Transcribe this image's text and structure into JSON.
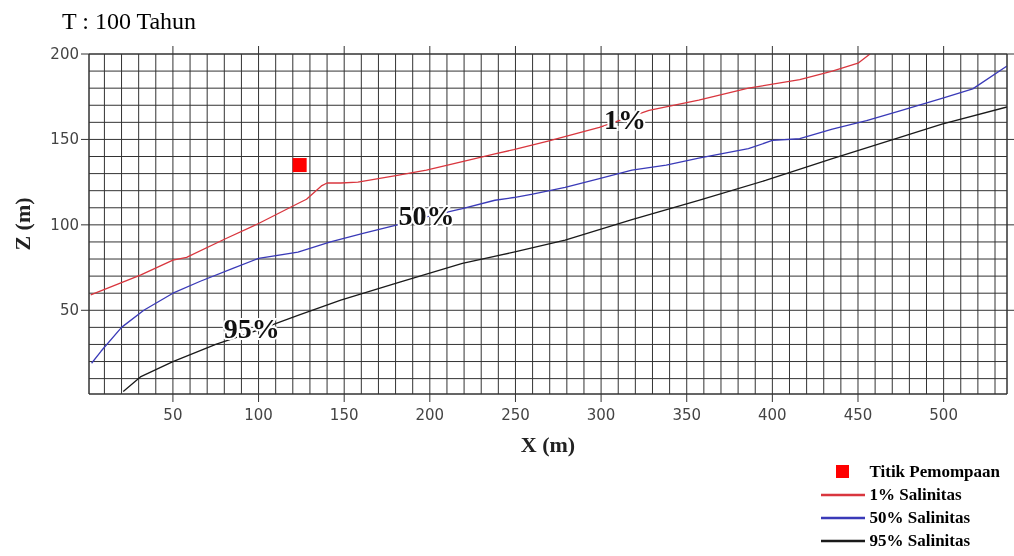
{
  "chart_data": {
    "type": "line",
    "title": "T : 100 Tahun",
    "xlabel": "X (m)",
    "ylabel": "Z (m)",
    "xlim": [
      1,
      537
    ],
    "ylim": [
      1,
      200
    ],
    "xticks": [
      {
        "value": 10,
        "label": null
      },
      {
        "value": 20,
        "label": null
      },
      {
        "value": 30,
        "label": null
      },
      {
        "value": 40,
        "label": null
      },
      50,
      {
        "value": 60,
        "label": null
      },
      {
        "value": 70,
        "label": null
      },
      {
        "value": 80,
        "label": null
      },
      {
        "value": 90,
        "label": null
      },
      100,
      {
        "value": 110,
        "label": null
      },
      {
        "value": 120,
        "label": null
      },
      {
        "value": 130,
        "label": null
      },
      {
        "value": 140,
        "label": null
      },
      150,
      {
        "value": 160,
        "label": null
      },
      {
        "value": 170,
        "label": null
      },
      {
        "value": 180,
        "label": null
      },
      {
        "value": 190,
        "label": null
      },
      200,
      {
        "value": 210,
        "label": null
      },
      {
        "value": 220,
        "label": null
      },
      {
        "value": 230,
        "label": null
      },
      {
        "value": 240,
        "label": null
      },
      250,
      {
        "value": 260,
        "label": null
      },
      {
        "value": 270,
        "label": null
      },
      {
        "value": 280,
        "label": null
      },
      {
        "value": 290,
        "label": null
      },
      300,
      {
        "value": 310,
        "label": null
      },
      {
        "value": 320,
        "label": null
      },
      {
        "value": 330,
        "label": null
      },
      {
        "value": 340,
        "label": null
      },
      350,
      {
        "value": 360,
        "label": null
      },
      {
        "value": 370,
        "label": null
      },
      {
        "value": 380,
        "label": null
      },
      {
        "value": 390,
        "label": null
      },
      400,
      {
        "value": 410,
        "label": null
      },
      {
        "value": 420,
        "label": null
      },
      {
        "value": 430,
        "label": null
      },
      {
        "value": 440,
        "label": null
      },
      450,
      {
        "value": 460,
        "label": null
      },
      {
        "value": 470,
        "label": null
      },
      {
        "value": 480,
        "label": null
      },
      {
        "value": 490,
        "label": null
      },
      500,
      {
        "value": 510,
        "label": null
      },
      {
        "value": 520,
        "label": null
      },
      {
        "value": 530,
        "label": null
      }
    ],
    "yticks": [
      {
        "value": 10,
        "label": null
      },
      {
        "value": 20,
        "label": null
      },
      {
        "value": 30,
        "label": null
      },
      {
        "value": 40,
        "label": null
      },
      50,
      {
        "value": 60,
        "label": null
      },
      {
        "value": 70,
        "label": null
      },
      {
        "value": 80,
        "label": null
      },
      {
        "value": 90,
        "label": null
      },
      100,
      {
        "value": 110,
        "label": null
      },
      {
        "value": 120,
        "label": null
      },
      {
        "value": 130,
        "label": null
      },
      {
        "value": 140,
        "label": null
      },
      150,
      {
        "value": 160,
        "label": null
      },
      {
        "value": 170,
        "label": null
      },
      {
        "value": 180,
        "label": null
      },
      {
        "value": 190,
        "label": null
      },
      200
    ],
    "grid": true,
    "legend": "bottom right",
    "series": [
      {
        "name": "Titik Pemompaan",
        "type": "scatter",
        "marker": "square",
        "color": "#ff0000",
        "x": [
          124
        ],
        "values": [
          135
        ]
      },
      {
        "name": "1% Salinitas",
        "marker": "none",
        "color": "#d9363e",
        "x": [
          2,
          31,
          50,
          58,
          81,
          100,
          123,
          128,
          137,
          140,
          148,
          158,
          181,
          198,
          219,
          238,
          249,
          269,
          299,
          328,
          357,
          386,
          416,
          435,
          450,
          457
        ],
        "values": [
          59,
          70.6,
          79.4,
          81,
          92,
          100.8,
          112.5,
          115,
          123,
          124.5,
          124.5,
          125,
          129,
          132,
          137,
          141.6,
          144,
          149,
          157,
          167,
          173,
          180,
          185,
          190,
          194.6,
          200
        ]
      },
      {
        "name": "50% Salinitas",
        "marker": "none",
        "color": "#3a3ab8",
        "x": [
          2.5,
          8,
          20,
          33,
          50,
          66,
          85,
          100,
          123,
          142,
          161,
          181,
          198,
          219,
          238,
          249,
          260,
          279,
          299,
          318,
          338,
          357,
          386,
          400,
          416,
          435,
          455,
          474,
          499,
          517,
          537
        ],
        "values": [
          19,
          26,
          40,
          50,
          60,
          67,
          74.5,
          80.4,
          84,
          90,
          95,
          100,
          104.7,
          109.5,
          114.4,
          116,
          118,
          122,
          127,
          132,
          135,
          139,
          144.6,
          149.4,
          150.4,
          156,
          161,
          166.5,
          174,
          179.6,
          193
        ]
      },
      {
        "name": "95% Salinitas",
        "marker": "none",
        "color": "#1a1a1a",
        "x": [
          21,
          31,
          50,
          75,
          100,
          123,
          148,
          181,
          219,
          249,
          279,
          318,
          357,
          396,
          435,
          474,
          499,
          537
        ],
        "values": [
          2.5,
          11,
          20,
          30,
          38.5,
          47,
          56,
          66,
          77.5,
          84,
          91,
          103,
          114.4,
          126,
          138.7,
          151,
          159,
          169
        ]
      }
    ],
    "annotations": [
      {
        "text": "1%",
        "x": 314,
        "y": 162
      },
      {
        "text": "50%",
        "x": 198,
        "y": 105.6
      },
      {
        "text": "95%",
        "x": 96,
        "y": 39.5
      }
    ]
  }
}
